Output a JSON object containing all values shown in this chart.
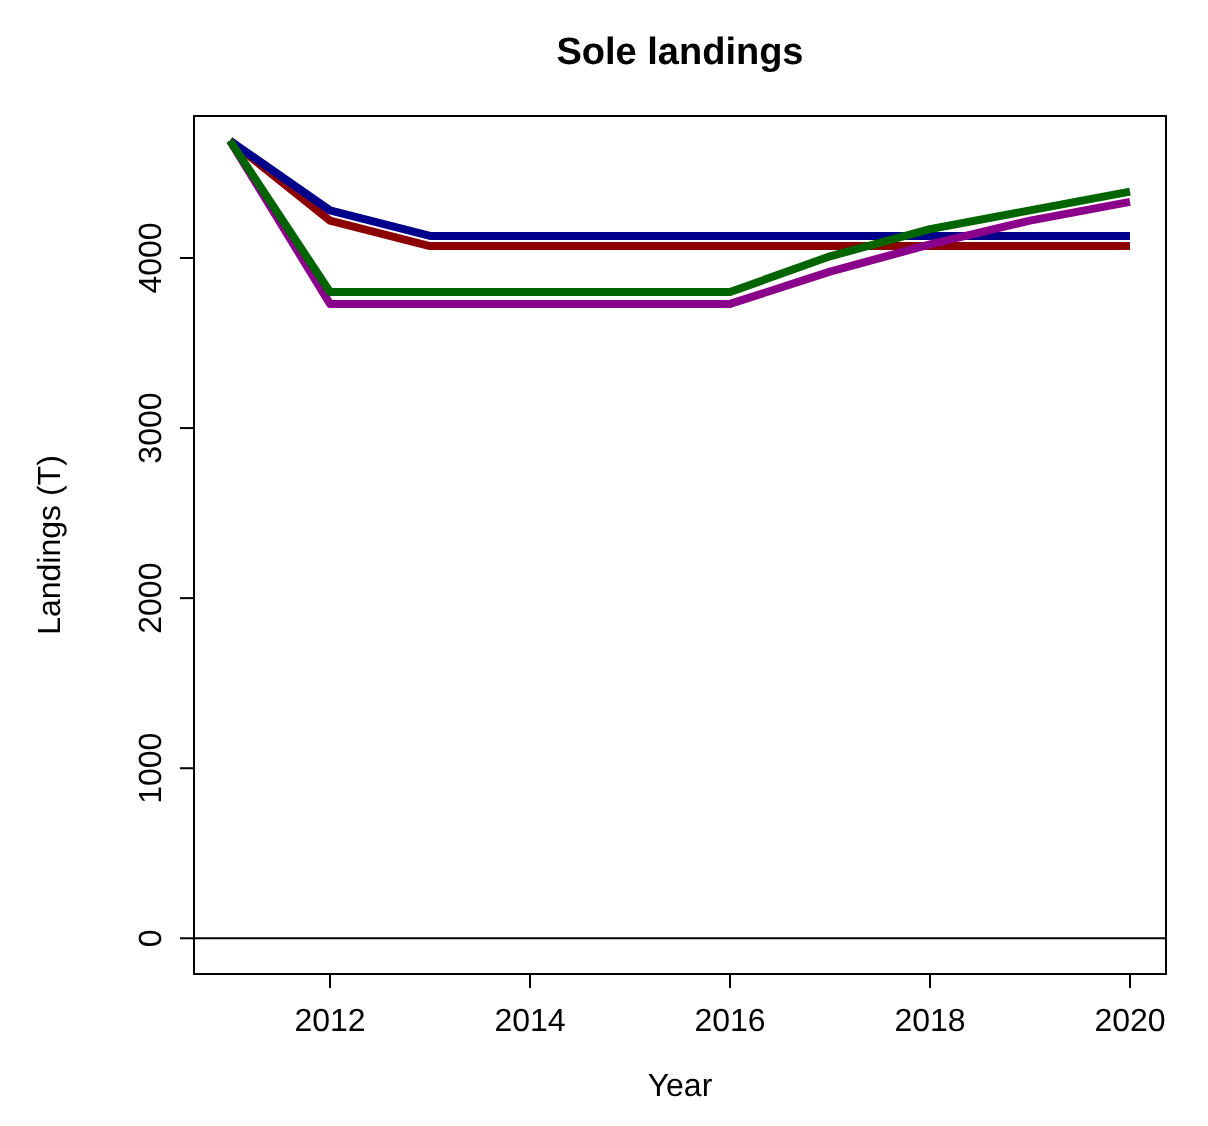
{
  "chart_data": {
    "type": "line",
    "title": "Sole landings",
    "xlabel": "Year",
    "ylabel": "Landings (T)",
    "x": [
      2011,
      2012,
      2013,
      2014,
      2015,
      2016,
      2017,
      2018,
      2019,
      2020
    ],
    "xlim": [
      2010.64,
      2020.36
    ],
    "xticks": [
      2012,
      2014,
      2016,
      2018,
      2020
    ],
    "ylim": [
      -210,
      4835
    ],
    "yticks": [
      0,
      1000,
      2000,
      3000,
      4000
    ],
    "grid": false,
    "line_style": "solid",
    "marker": "none",
    "ref_lines": [
      {
        "axis": "y",
        "value": 0,
        "color": "#000000"
      }
    ],
    "series": [
      {
        "color": "#8b0000",
        "values": [
          4690,
          4220,
          4070,
          4070,
          4070,
          4070,
          4070,
          4070,
          4070,
          4070
        ]
      },
      {
        "color": "#00008b",
        "values": [
          4690,
          4280,
          4130,
          4130,
          4130,
          4130,
          4130,
          4130,
          4130,
          4130
        ]
      },
      {
        "color": "#8b008b",
        "values": [
          4690,
          3730,
          3730,
          3730,
          3730,
          3730,
          3920,
          4080,
          4220,
          4330
        ]
      },
      {
        "color": "#006400",
        "values": [
          4690,
          3800,
          3800,
          3800,
          3800,
          3800,
          4010,
          4170,
          4280,
          4390
        ]
      }
    ]
  }
}
